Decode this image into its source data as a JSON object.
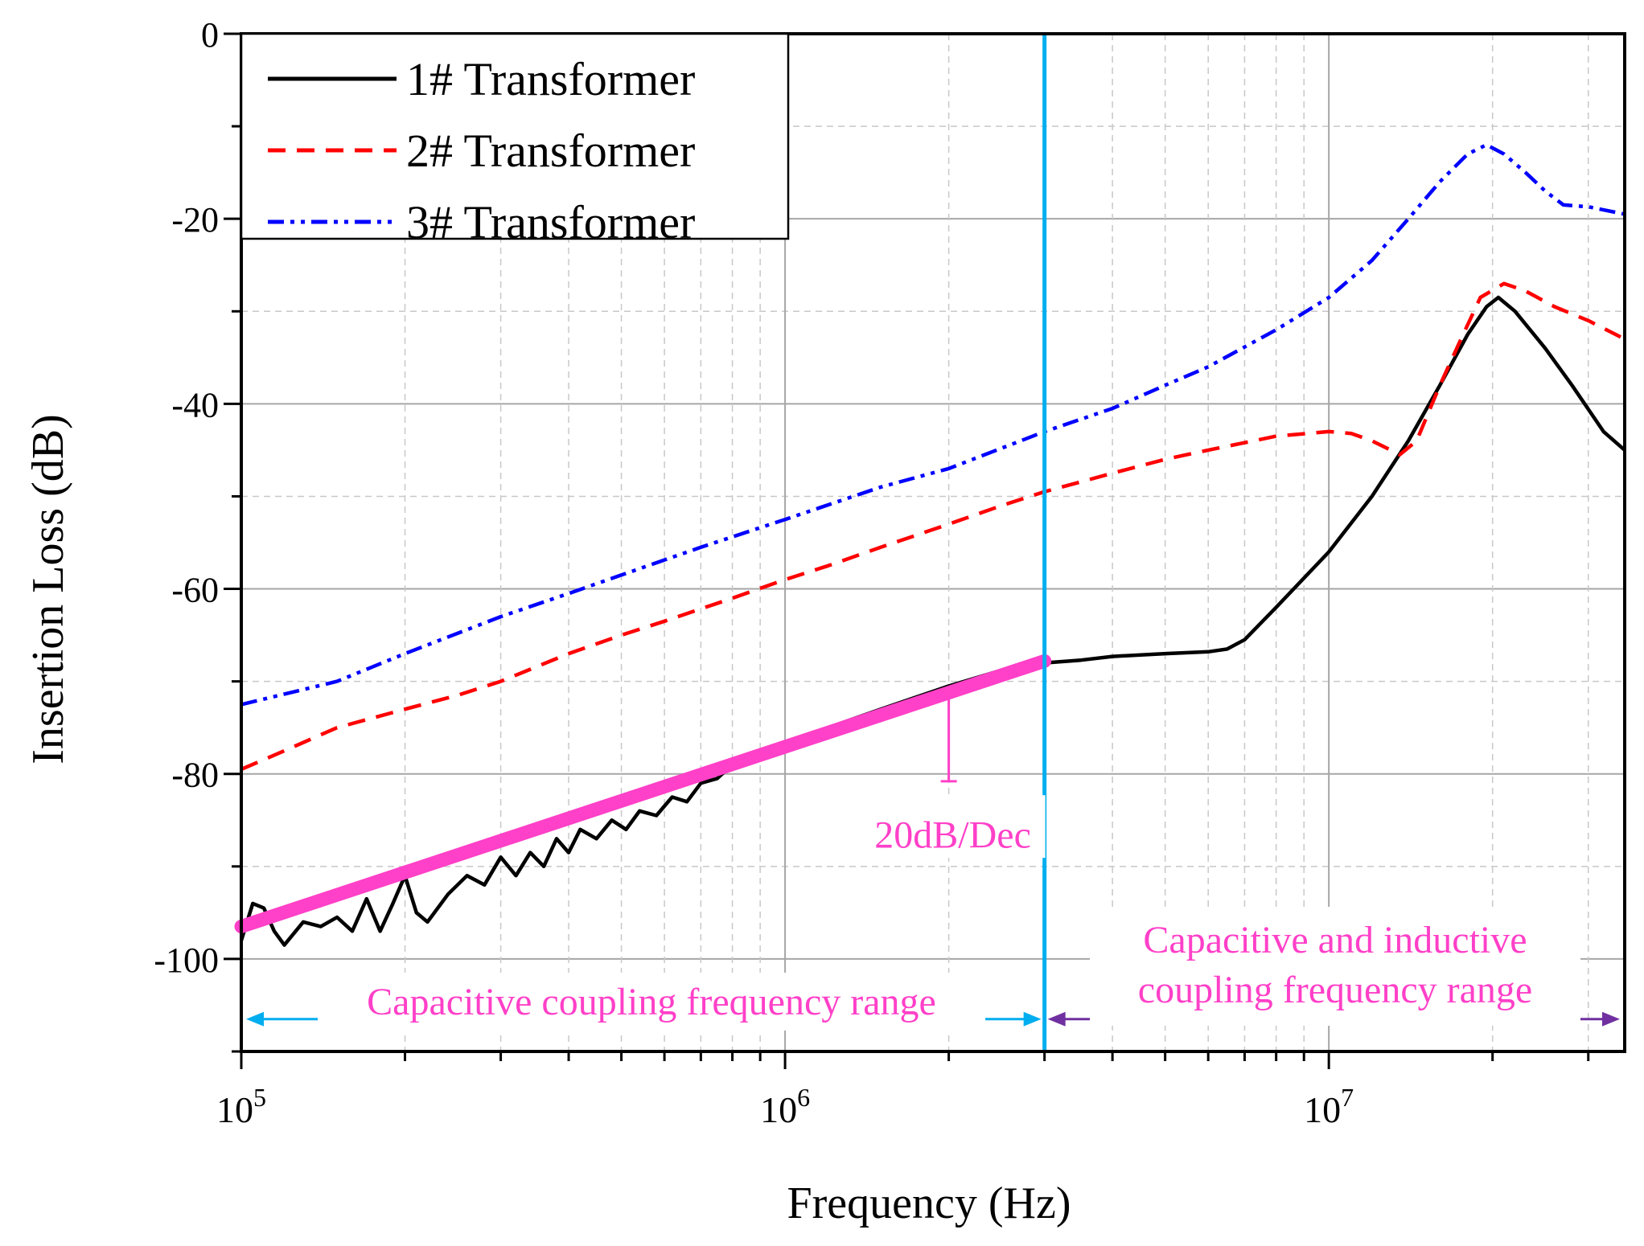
{
  "chart_data": {
    "type": "line",
    "xscale": "log",
    "xlim": [
      100000,
      35000000
    ],
    "ylim": [
      -110,
      0
    ],
    "xlabel": "Frequency (Hz)",
    "ylabel": "Insertion Loss (dB)",
    "y_ticks": [
      {
        "value": 0,
        "label": "0"
      },
      {
        "value": -20,
        "label": "-20"
      },
      {
        "value": -40,
        "label": "-40"
      },
      {
        "value": -60,
        "label": "-60"
      },
      {
        "value": -80,
        "label": "-80"
      },
      {
        "value": -100,
        "label": "-100"
      }
    ],
    "x_ticks": [
      {
        "value": 100000,
        "base": "10",
        "exp": "5"
      },
      {
        "value": 1000000,
        "base": "10",
        "exp": "6"
      },
      {
        "value": 10000000,
        "base": "10",
        "exp": "7"
      }
    ],
    "grid": true,
    "legend_position": "top-left",
    "series": [
      {
        "name": "1# Transformer",
        "color": "#000000",
        "style": "solid",
        "points": [
          [
            100000,
            -98
          ],
          [
            105000,
            -94
          ],
          [
            110000,
            -94.5
          ],
          [
            115000,
            -97
          ],
          [
            120000,
            -98.5
          ],
          [
            130000,
            -96
          ],
          [
            140000,
            -96.5
          ],
          [
            150000,
            -95.5
          ],
          [
            160000,
            -97
          ],
          [
            170000,
            -93.5
          ],
          [
            180000,
            -97
          ],
          [
            190000,
            -94
          ],
          [
            200000,
            -91
          ],
          [
            210000,
            -95
          ],
          [
            220000,
            -96
          ],
          [
            240000,
            -93
          ],
          [
            260000,
            -91
          ],
          [
            280000,
            -92
          ],
          [
            300000,
            -89
          ],
          [
            320000,
            -91
          ],
          [
            340000,
            -88.5
          ],
          [
            360000,
            -90
          ],
          [
            380000,
            -87
          ],
          [
            400000,
            -88.5
          ],
          [
            420000,
            -86
          ],
          [
            450000,
            -87
          ],
          [
            480000,
            -85
          ],
          [
            510000,
            -86
          ],
          [
            540000,
            -84
          ],
          [
            580000,
            -84.5
          ],
          [
            620000,
            -82.5
          ],
          [
            660000,
            -83
          ],
          [
            700000,
            -81
          ],
          [
            750000,
            -80.5
          ],
          [
            800000,
            -79
          ],
          [
            850000,
            -79
          ],
          [
            900000,
            -77.5
          ],
          [
            1000000,
            -77
          ],
          [
            1200000,
            -75
          ],
          [
            1500000,
            -73
          ],
          [
            2000000,
            -70.5
          ],
          [
            2500000,
            -68.8
          ],
          [
            3000000,
            -68
          ],
          [
            3500000,
            -67.7
          ],
          [
            4000000,
            -67.3
          ],
          [
            5000000,
            -67
          ],
          [
            6000000,
            -66.8
          ],
          [
            6500000,
            -66.5
          ],
          [
            7000000,
            -65.5
          ],
          [
            8000000,
            -62
          ],
          [
            10000000,
            -56
          ],
          [
            12000000,
            -50
          ],
          [
            14000000,
            -44
          ],
          [
            16000000,
            -38
          ],
          [
            18000000,
            -32.5
          ],
          [
            19500000,
            -29.5
          ],
          [
            20500000,
            -28.5
          ],
          [
            22000000,
            -30
          ],
          [
            25000000,
            -34
          ],
          [
            28000000,
            -38
          ],
          [
            32000000,
            -43
          ],
          [
            35000000,
            -45
          ]
        ]
      },
      {
        "name": "2# Transformer",
        "color": "#ff0000",
        "style": "dashed",
        "points": [
          [
            100000,
            -79.5
          ],
          [
            120000,
            -77.5
          ],
          [
            150000,
            -75
          ],
          [
            200000,
            -73
          ],
          [
            250000,
            -71.5
          ],
          [
            300000,
            -70
          ],
          [
            400000,
            -67
          ],
          [
            500000,
            -65
          ],
          [
            600000,
            -63.5
          ],
          [
            800000,
            -61
          ],
          [
            1000000,
            -59
          ],
          [
            1200000,
            -57.5
          ],
          [
            1500000,
            -55.5
          ],
          [
            2000000,
            -53
          ],
          [
            2500000,
            -51
          ],
          [
            3000000,
            -49.5
          ],
          [
            4000000,
            -47.5
          ],
          [
            5000000,
            -46
          ],
          [
            6000000,
            -45
          ],
          [
            7000000,
            -44.2
          ],
          [
            8000000,
            -43.5
          ],
          [
            10000000,
            -43
          ],
          [
            11000000,
            -43.2
          ],
          [
            12000000,
            -44
          ],
          [
            13000000,
            -45
          ],
          [
            13500000,
            -45.5
          ],
          [
            14500000,
            -44
          ],
          [
            16000000,
            -38
          ],
          [
            17500000,
            -33
          ],
          [
            19000000,
            -28.5
          ],
          [
            21000000,
            -27
          ],
          [
            23000000,
            -27.8
          ],
          [
            26000000,
            -29.5
          ],
          [
            30000000,
            -31
          ],
          [
            35000000,
            -33
          ]
        ]
      },
      {
        "name": "3# Transformer",
        "color": "#0000ff",
        "style": "dashdot",
        "points": [
          [
            100000,
            -72.5
          ],
          [
            150000,
            -70
          ],
          [
            200000,
            -67
          ],
          [
            300000,
            -63
          ],
          [
            400000,
            -60.5
          ],
          [
            500000,
            -58.5
          ],
          [
            700000,
            -55.5
          ],
          [
            1000000,
            -52.5
          ],
          [
            1500000,
            -49
          ],
          [
            2000000,
            -47
          ],
          [
            3000000,
            -43
          ],
          [
            4000000,
            -40.5
          ],
          [
            5000000,
            -38
          ],
          [
            6000000,
            -36
          ],
          [
            8000000,
            -32
          ],
          [
            10000000,
            -28.5
          ],
          [
            12000000,
            -24.5
          ],
          [
            14000000,
            -20
          ],
          [
            16000000,
            -16
          ],
          [
            18000000,
            -13
          ],
          [
            19500000,
            -12
          ],
          [
            21000000,
            -13
          ],
          [
            23000000,
            -15
          ],
          [
            25000000,
            -17
          ],
          [
            27000000,
            -18.5
          ],
          [
            30000000,
            -18.7
          ],
          [
            35000000,
            -19.5
          ]
        ]
      },
      {
        "name": "fit",
        "color": "#ff40c8",
        "style": "thick",
        "points": [
          [
            100000,
            -96.5
          ],
          [
            3000000,
            -67.8
          ]
        ]
      }
    ],
    "annotations": {
      "slope_label": "20dB/Dec",
      "vline_x": 3000000,
      "region1_label": "Capacitive coupling frequency range",
      "region2_label_line1": "Capacitive and inductive",
      "region2_label_line2": "coupling frequency range",
      "arrow_y": -106.5,
      "colors": {
        "magenta": "#ff40c8",
        "cyan": "#00aeef",
        "purple": "#7030a0"
      }
    }
  }
}
